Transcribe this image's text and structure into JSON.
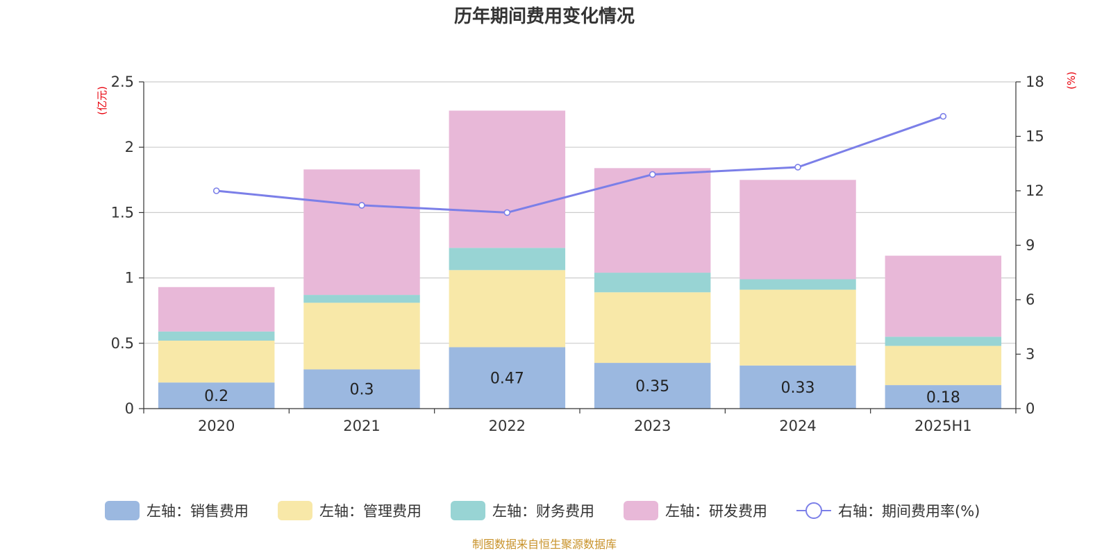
{
  "chart_data": {
    "type": "bar",
    "stacked": true,
    "title": "历年期间费用变化情况",
    "categories": [
      "2020",
      "2021",
      "2022",
      "2023",
      "2024",
      "2025H1"
    ],
    "left_axis": {
      "unit": "(亿元)",
      "ylim": [
        0,
        2.5
      ],
      "ticks": [
        "0",
        "0.5",
        "1",
        "1.5",
        "2",
        "2.5"
      ]
    },
    "right_axis": {
      "unit": "(%)",
      "ylim": [
        0,
        18
      ],
      "ticks": [
        "0",
        "3",
        "6",
        "9",
        "12",
        "15",
        "18"
      ]
    },
    "grid": true,
    "legend_position": "bottom",
    "series": [
      {
        "name": "左轴：销售费用",
        "axis": "left",
        "type": "bar",
        "color": "#9bb8e0",
        "values": [
          0.2,
          0.3,
          0.47,
          0.35,
          0.33,
          0.18
        ],
        "labels": [
          "0.2",
          "0.3",
          "0.47",
          "0.35",
          "0.33",
          "0.18"
        ]
      },
      {
        "name": "左轴：管理费用",
        "axis": "left",
        "type": "bar",
        "color": "#f8e8a8",
        "values": [
          0.32,
          0.51,
          0.59,
          0.54,
          0.58,
          0.3
        ]
      },
      {
        "name": "左轴：财务费用",
        "axis": "left",
        "type": "bar",
        "color": "#98d4d4",
        "values": [
          0.07,
          0.06,
          0.17,
          0.15,
          0.08,
          0.07
        ]
      },
      {
        "name": "左轴：研发费用",
        "axis": "left",
        "type": "bar",
        "color": "#e8b8d8",
        "values": [
          0.34,
          0.96,
          1.05,
          0.8,
          0.76,
          0.62
        ]
      },
      {
        "name": "右轴：期间费用率(%)",
        "axis": "right",
        "type": "line",
        "color": "#7b7fe8",
        "values": [
          12.0,
          11.2,
          10.8,
          12.9,
          13.3,
          16.1
        ]
      }
    ],
    "source": "制图数据来自恒生聚源数据库"
  }
}
